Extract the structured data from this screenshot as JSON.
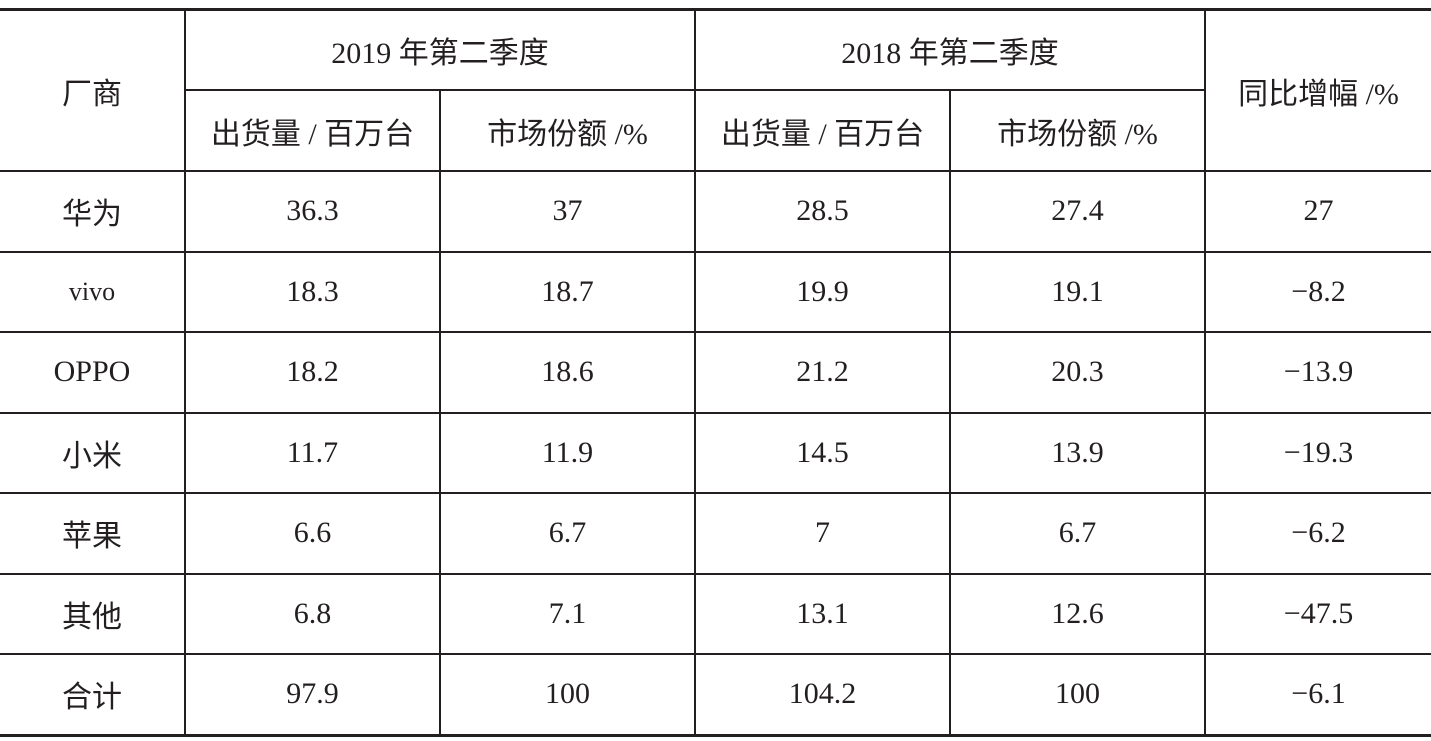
{
  "table": {
    "header": {
      "vendor": "厂商",
      "group1": "2019 年第二季度",
      "group2": "2018 年第二季度",
      "growth": "同比增幅 /%",
      "sub": [
        "出货量 / 百万台",
        "市场份额 /%",
        "出货量 / 百万台",
        "市场份额 /%"
      ]
    },
    "rows": [
      [
        "华为",
        "36.3",
        "37",
        "28.5",
        "27.4",
        "27"
      ],
      [
        "vivo",
        "18.3",
        "18.7",
        "19.9",
        "19.1",
        "−8.2"
      ],
      [
        "OPPO",
        "18.2",
        "18.6",
        "21.2",
        "20.3",
        "−13.9"
      ],
      [
        "小米",
        "11.7",
        "11.9",
        "14.5",
        "13.9",
        "−19.3"
      ],
      [
        "苹果",
        "6.6",
        "6.7",
        "7",
        "6.7",
        "−6.2"
      ],
      [
        "其他",
        "6.8",
        "7.1",
        "13.1",
        "12.6",
        "−47.5"
      ],
      [
        "合计",
        "97.9",
        "100",
        "104.2",
        "100",
        "−6.1"
      ]
    ]
  }
}
